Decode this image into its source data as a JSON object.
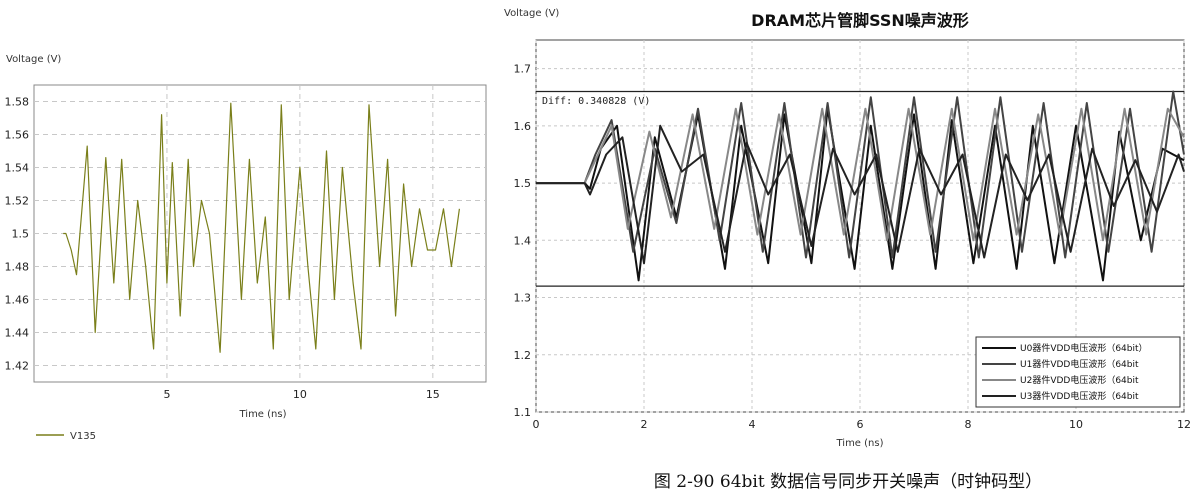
{
  "chart_data": [
    {
      "type": "line",
      "title": "",
      "ylabel": "Voltage (V)",
      "xlabel": "Time (ns)",
      "xlim": [
        0,
        17
      ],
      "ylim": [
        1.41,
        1.59
      ],
      "x_ticks": [
        5,
        10,
        15
      ],
      "y_ticks": [
        1.42,
        1.44,
        1.46,
        1.48,
        1.5,
        1.52,
        1.54,
        1.56,
        1.58
      ],
      "grid": true,
      "legend": "bottom-left",
      "series_color": "#7a7f1a",
      "series": [
        {
          "name": "V135",
          "x": [
            1.1,
            1.2,
            1.4,
            1.6,
            2.0,
            2.3,
            2.7,
            3.0,
            3.3,
            3.6,
            3.9,
            4.2,
            4.5,
            4.8,
            5.0,
            5.2,
            5.5,
            5.8,
            6.0,
            6.3,
            6.6,
            7.0,
            7.4,
            7.8,
            8.1,
            8.4,
            8.7,
            9.0,
            9.3,
            9.6,
            10.0,
            10.3,
            10.6,
            11.0,
            11.3,
            11.6,
            12.0,
            12.3,
            12.6,
            13.0,
            13.3,
            13.6,
            13.9,
            14.2,
            14.5,
            14.8,
            15.1,
            15.4,
            15.7,
            16.0
          ],
          "y": [
            1.5,
            1.5,
            1.49,
            1.475,
            1.553,
            1.44,
            1.546,
            1.47,
            1.545,
            1.46,
            1.52,
            1.48,
            1.43,
            1.572,
            1.47,
            1.543,
            1.45,
            1.545,
            1.48,
            1.52,
            1.5,
            1.428,
            1.579,
            1.46,
            1.545,
            1.47,
            1.51,
            1.43,
            1.578,
            1.46,
            1.54,
            1.48,
            1.43,
            1.55,
            1.46,
            1.54,
            1.47,
            1.43,
            1.578,
            1.48,
            1.545,
            1.45,
            1.53,
            1.48,
            1.515,
            1.49,
            1.49,
            1.515,
            1.48,
            1.515
          ]
        }
      ]
    },
    {
      "type": "line",
      "title": "DRAM芯片管脚SSN噪声波形",
      "ylabel": "Voltage (V)",
      "xlabel": "Time (ns)",
      "xlim": [
        0,
        12
      ],
      "ylim": [
        1.1,
        1.75
      ],
      "x_ticks": [
        0,
        2,
        4,
        6,
        8,
        10,
        12
      ],
      "y_ticks": [
        1.1,
        1.2,
        1.3,
        1.4,
        1.5,
        1.6,
        1.7
      ],
      "grid": true,
      "legend": "bottom-right",
      "annotation": "Diff: 0.340828 (V)",
      "markers": [
        1.66,
        1.32
      ],
      "series": [
        {
          "name": "U0器件VDD电压波形（64bit）",
          "color": "#111111",
          "x": [
            0,
            0.9,
            1.0,
            1.2,
            1.5,
            1.9,
            2.2,
            2.6,
            3.0,
            3.5,
            3.8,
            4.3,
            4.6,
            5.1,
            5.4,
            5.9,
            6.2,
            6.6,
            7.0,
            7.4,
            7.7,
            8.1,
            8.5,
            8.9,
            9.2,
            9.6,
            10.0,
            10.5,
            10.8,
            11.2,
            11.6,
            12.0
          ],
          "y": [
            1.5,
            1.5,
            1.49,
            1.56,
            1.6,
            1.33,
            1.58,
            1.44,
            1.62,
            1.35,
            1.6,
            1.36,
            1.62,
            1.36,
            1.63,
            1.35,
            1.6,
            1.35,
            1.62,
            1.35,
            1.61,
            1.36,
            1.6,
            1.35,
            1.6,
            1.36,
            1.6,
            1.33,
            1.59,
            1.4,
            1.56,
            1.54
          ]
        },
        {
          "name": "U1器件VDD电压波形（64bit",
          "color": "#444444",
          "x": [
            0,
            0.9,
            1.1,
            1.4,
            1.8,
            2.2,
            2.6,
            3.0,
            3.4,
            3.8,
            4.2,
            4.6,
            5.0,
            5.4,
            5.8,
            6.2,
            6.6,
            7.0,
            7.4,
            7.8,
            8.2,
            8.6,
            9.0,
            9.4,
            9.8,
            10.2,
            10.6,
            11.0,
            11.4,
            11.8,
            12.0
          ],
          "y": [
            1.5,
            1.5,
            1.55,
            1.61,
            1.38,
            1.56,
            1.43,
            1.63,
            1.4,
            1.64,
            1.38,
            1.64,
            1.37,
            1.64,
            1.37,
            1.65,
            1.37,
            1.65,
            1.38,
            1.65,
            1.37,
            1.65,
            1.38,
            1.64,
            1.37,
            1.64,
            1.38,
            1.63,
            1.38,
            1.66,
            1.55
          ]
        },
        {
          "name": "U2器件VDD电压波形（64bit",
          "color": "#888888",
          "x": [
            0,
            0.9,
            1.1,
            1.4,
            1.7,
            2.1,
            2.5,
            2.9,
            3.3,
            3.7,
            4.1,
            4.5,
            4.9,
            5.3,
            5.7,
            6.1,
            6.5,
            6.9,
            7.3,
            7.7,
            8.1,
            8.5,
            8.9,
            9.3,
            9.7,
            10.1,
            10.5,
            10.9,
            11.3,
            11.7,
            12.0
          ],
          "y": [
            1.5,
            1.5,
            1.54,
            1.6,
            1.42,
            1.59,
            1.44,
            1.62,
            1.42,
            1.63,
            1.41,
            1.62,
            1.41,
            1.63,
            1.41,
            1.63,
            1.4,
            1.63,
            1.41,
            1.63,
            1.4,
            1.63,
            1.41,
            1.62,
            1.41,
            1.63,
            1.4,
            1.63,
            1.41,
            1.63,
            1.58
          ]
        },
        {
          "name": "U3器件VDD电压波形（64bit",
          "color": "#222222",
          "x": [
            0,
            0.9,
            1.0,
            1.3,
            1.6,
            2.0,
            2.3,
            2.7,
            3.1,
            3.5,
            3.9,
            4.3,
            4.7,
            5.1,
            5.5,
            5.9,
            6.3,
            6.7,
            7.1,
            7.5,
            7.9,
            8.3,
            8.7,
            9.1,
            9.5,
            9.9,
            10.3,
            10.7,
            11.1,
            11.5,
            11.9,
            12.0
          ],
          "y": [
            1.5,
            1.5,
            1.48,
            1.55,
            1.58,
            1.36,
            1.6,
            1.52,
            1.55,
            1.38,
            1.57,
            1.48,
            1.55,
            1.39,
            1.56,
            1.48,
            1.55,
            1.38,
            1.56,
            1.48,
            1.55,
            1.37,
            1.55,
            1.47,
            1.55,
            1.38,
            1.56,
            1.46,
            1.54,
            1.45,
            1.55,
            1.52
          ]
        }
      ]
    }
  ],
  "caption": "图 2-90    64bit 数据信号同步开关噪声（时钟码型）"
}
